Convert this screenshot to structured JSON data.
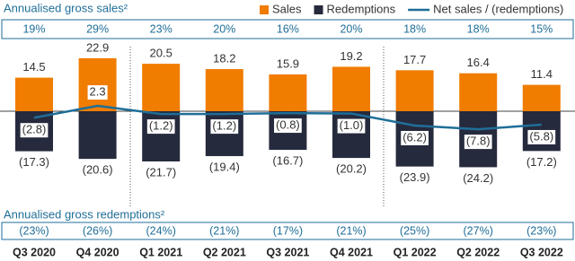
{
  "chart_data": {
    "type": "bar",
    "categories": [
      "Q3 2020",
      "Q4 2020",
      "Q1 2021",
      "Q2 2021",
      "Q3 2021",
      "Q4 2021",
      "Q1 2022",
      "Q2 2022",
      "Q3 2022"
    ],
    "series": [
      {
        "name": "Sales",
        "color": "#f07c00",
        "values": [
          14.5,
          22.9,
          20.5,
          18.2,
          15.9,
          19.2,
          17.7,
          16.4,
          11.4
        ]
      },
      {
        "name": "Redemptions",
        "color": "#262a3d",
        "values": [
          -17.3,
          -20.6,
          -21.7,
          -19.4,
          -16.7,
          -20.2,
          -23.9,
          -24.2,
          -17.2
        ],
        "value_labels": [
          "(17.3)",
          "(20.6)",
          "(21.7)",
          "(19.4)",
          "(16.7)",
          "(20.2)",
          "(23.9)",
          "(24.2)",
          "(17.2)"
        ]
      },
      {
        "name": "Net sales / (redemptions)",
        "type": "line",
        "color": "#1f6e98",
        "values": [
          -2.8,
          2.3,
          -1.2,
          -1.2,
          -0.8,
          -1.0,
          -6.2,
          -7.8,
          -5.8
        ],
        "value_labels": [
          "(2.8)",
          "2.3",
          "(1.2)",
          "(1.2)",
          "(0.8)",
          "(1.0)",
          "(6.2)",
          "(7.8)",
          "(5.8)"
        ]
      }
    ],
    "gross_sales_rate": {
      "label": "Annualised gross sales²",
      "values": [
        19,
        29,
        23,
        20,
        16,
        20,
        18,
        18,
        15
      ],
      "value_labels": [
        "19%",
        "29%",
        "23%",
        "20%",
        "16%",
        "20%",
        "18%",
        "18%",
        "15%"
      ]
    },
    "gross_redemption_rate": {
      "label": "Annualised gross redemptions²",
      "values": [
        -23,
        -26,
        -24,
        -21,
        -17,
        -21,
        -25,
        -27,
        -23
      ],
      "value_labels": [
        "(23%)",
        "(26%)",
        "(24%)",
        "(21%)",
        "(17%)",
        "(21%)",
        "(25%)",
        "(27%)",
        "(23%)"
      ]
    }
  }
}
